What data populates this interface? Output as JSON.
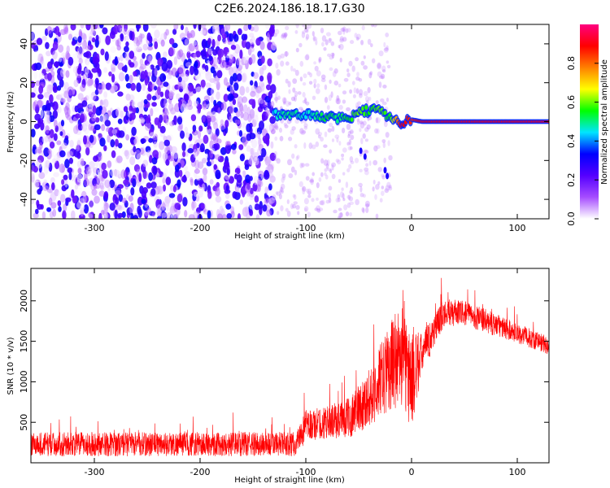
{
  "figure": {
    "title": "C2E6.2024.186.18.17.G30"
  },
  "chart_data": [
    {
      "type": "heatmap",
      "xlabel": "Height of straight line (km)",
      "ylabel": "Frequency (Hz)",
      "xlim": [
        -360,
        130
      ],
      "ylim": [
        -50,
        50
      ],
      "xticks": [
        -300,
        -200,
        -100,
        0,
        100
      ],
      "yticks": [
        -40,
        -20,
        0,
        20,
        40
      ],
      "colorbar": {
        "label": "Normalized spectral amplitude",
        "range": [
          0.0,
          1.0
        ],
        "ticks": [
          0.0,
          0.2,
          0.4,
          0.6,
          0.8
        ],
        "colormap": [
          "#ffffff",
          "#a64dff",
          "#5500ff",
          "#0000ff",
          "#00e5ff",
          "#00ff00",
          "#ffff00",
          "#ff8000",
          "#ff0000",
          "#ff0080"
        ]
      },
      "noise_region": {
        "x_range": [
          -360,
          -130
        ],
        "y_range": [
          -50,
          50
        ],
        "amplitude": 0.15
      },
      "sparse_region": {
        "x_range": [
          -130,
          -20
        ],
        "amplitude": 0.05
      },
      "signal_track": {
        "x": [
          -130,
          -120,
          -110,
          -100,
          -90,
          -80,
          -70,
          -60,
          -50,
          -40,
          -30,
          -20,
          -10,
          0,
          10,
          20,
          30,
          130
        ],
        "y": [
          4,
          4,
          3,
          4,
          2,
          3,
          1,
          2,
          4,
          6,
          5,
          2,
          0,
          1,
          0,
          0,
          0,
          0
        ],
        "amplitude": [
          0.45,
          0.5,
          0.5,
          0.45,
          0.5,
          0.55,
          0.5,
          0.55,
          0.6,
          0.55,
          0.6,
          0.55,
          0.9,
          0.85,
          0.9,
          0.9,
          0.9,
          0.9
        ]
      }
    },
    {
      "type": "line",
      "xlabel": "Height of straight line (km)",
      "ylabel": "SNR (10 * v/v)",
      "xlim": [
        -360,
        130
      ],
      "ylim": [
        0,
        2400
      ],
      "xticks": [
        -300,
        -200,
        -100,
        0,
        100
      ],
      "yticks": [
        500,
        1000,
        1500,
        2000
      ],
      "series": [
        {
          "color": "#ff0000",
          "x": [
            -360,
            -300,
            -200,
            -110,
            -100,
            -80,
            -60,
            -40,
            -30,
            -20,
            -10,
            0,
            10,
            20,
            30,
            50,
            70,
            90,
            110,
            130
          ],
          "y": [
            230,
            230,
            230,
            230,
            450,
            500,
            550,
            800,
            1000,
            1200,
            1350,
            1000,
            1350,
            1600,
            1850,
            1850,
            1750,
            1650,
            1550,
            1450
          ],
          "noise": [
            150,
            150,
            150,
            150,
            200,
            200,
            250,
            350,
            450,
            550,
            650,
            600,
            250,
            220,
            180,
            150,
            150,
            130,
            120,
            120
          ]
        }
      ]
    }
  ]
}
